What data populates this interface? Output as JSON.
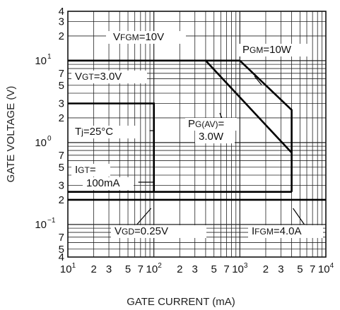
{
  "chart_data": {
    "type": "line",
    "xlabel": "GATE CURRENT (mA)",
    "ylabel": "GATE VOLTAGE (V)",
    "xscale": "log",
    "yscale": "log",
    "xlim": [
      10,
      10000
    ],
    "ylim": [
      0.04,
      40
    ],
    "grid": true,
    "x_ticks": [
      {
        "v": 10,
        "b": "10",
        "e": "1"
      },
      {
        "v": 20,
        "b": "2"
      },
      {
        "v": 30,
        "b": "3"
      },
      {
        "v": 50,
        "b": "5"
      },
      {
        "v": 70,
        "b": "7"
      },
      {
        "v": 100,
        "b": "10",
        "e": "2"
      },
      {
        "v": 200,
        "b": "2"
      },
      {
        "v": 300,
        "b": "3"
      },
      {
        "v": 500,
        "b": "5"
      },
      {
        "v": 700,
        "b": "7"
      },
      {
        "v": 1000,
        "b": "10",
        "e": "3"
      },
      {
        "v": 2000,
        "b": "2"
      },
      {
        "v": 3000,
        "b": "3"
      },
      {
        "v": 5000,
        "b": "5"
      },
      {
        "v": 7000,
        "b": "7"
      },
      {
        "v": 10000,
        "b": "10",
        "e": "4"
      }
    ],
    "y_ticks": [
      {
        "v": 40,
        "b": "4"
      },
      {
        "v": 30,
        "b": "3"
      },
      {
        "v": 20,
        "b": "2"
      },
      {
        "v": 10,
        "b": "10",
        "e": "1"
      },
      {
        "v": 7,
        "b": "7"
      },
      {
        "v": 5,
        "b": "5"
      },
      {
        "v": 3,
        "b": "3"
      },
      {
        "v": 2,
        "b": "2"
      },
      {
        "v": 1,
        "b": "10",
        "e": "0"
      },
      {
        "v": 0.7,
        "b": "7"
      },
      {
        "v": 0.5,
        "b": "5"
      },
      {
        "v": 0.3,
        "b": "3"
      },
      {
        "v": 0.2,
        "b": "2"
      },
      {
        "v": 0.1,
        "b": "10",
        "e": "−1"
      },
      {
        "v": 0.07,
        "b": "7"
      },
      {
        "v": 0.05,
        "b": "5"
      },
      {
        "v": 0.04,
        "b": "4"
      }
    ],
    "series": [
      {
        "points": [
          [
            10,
            10
          ],
          [
            1000,
            10
          ]
        ]
      },
      {
        "points": [
          [
            1000,
            10
          ],
          [
            4000,
            2.5
          ],
          [
            4000,
            0.25
          ]
        ]
      },
      {
        "points": [
          [
            400,
            10
          ],
          [
            4000,
            0.75
          ]
        ]
      },
      {
        "points": [
          [
            10,
            3
          ],
          [
            100,
            3
          ],
          [
            100,
            0.25
          ]
        ]
      },
      {
        "points": [
          [
            10,
            0.25
          ],
          [
            4000,
            0.25
          ]
        ]
      },
      {
        "points": [
          [
            10,
            0.2
          ],
          [
            10000,
            0.2
          ]
        ]
      }
    ],
    "annotations": [
      {
        "base": "V",
        "sub": "FGM",
        "rest": "=10V"
      },
      {
        "base": "P",
        "sub": "GM",
        "rest": "=10W"
      },
      {
        "base": "V",
        "sub": "GT",
        "rest": "=3.0V"
      },
      {
        "base": "P",
        "sub": "G(AV)",
        "rest": "="
      },
      {
        "text": "3.0W"
      },
      {
        "base": "T",
        "sub": "j",
        "rest": "=25°C"
      },
      {
        "base": "I",
        "sub": "GT",
        "rest": "="
      },
      {
        "text": "100mA"
      },
      {
        "base": "V",
        "sub": "GD",
        "rest": "=0.25V"
      },
      {
        "base": "I",
        "sub": "FGM",
        "rest": "=4.0A"
      }
    ]
  }
}
